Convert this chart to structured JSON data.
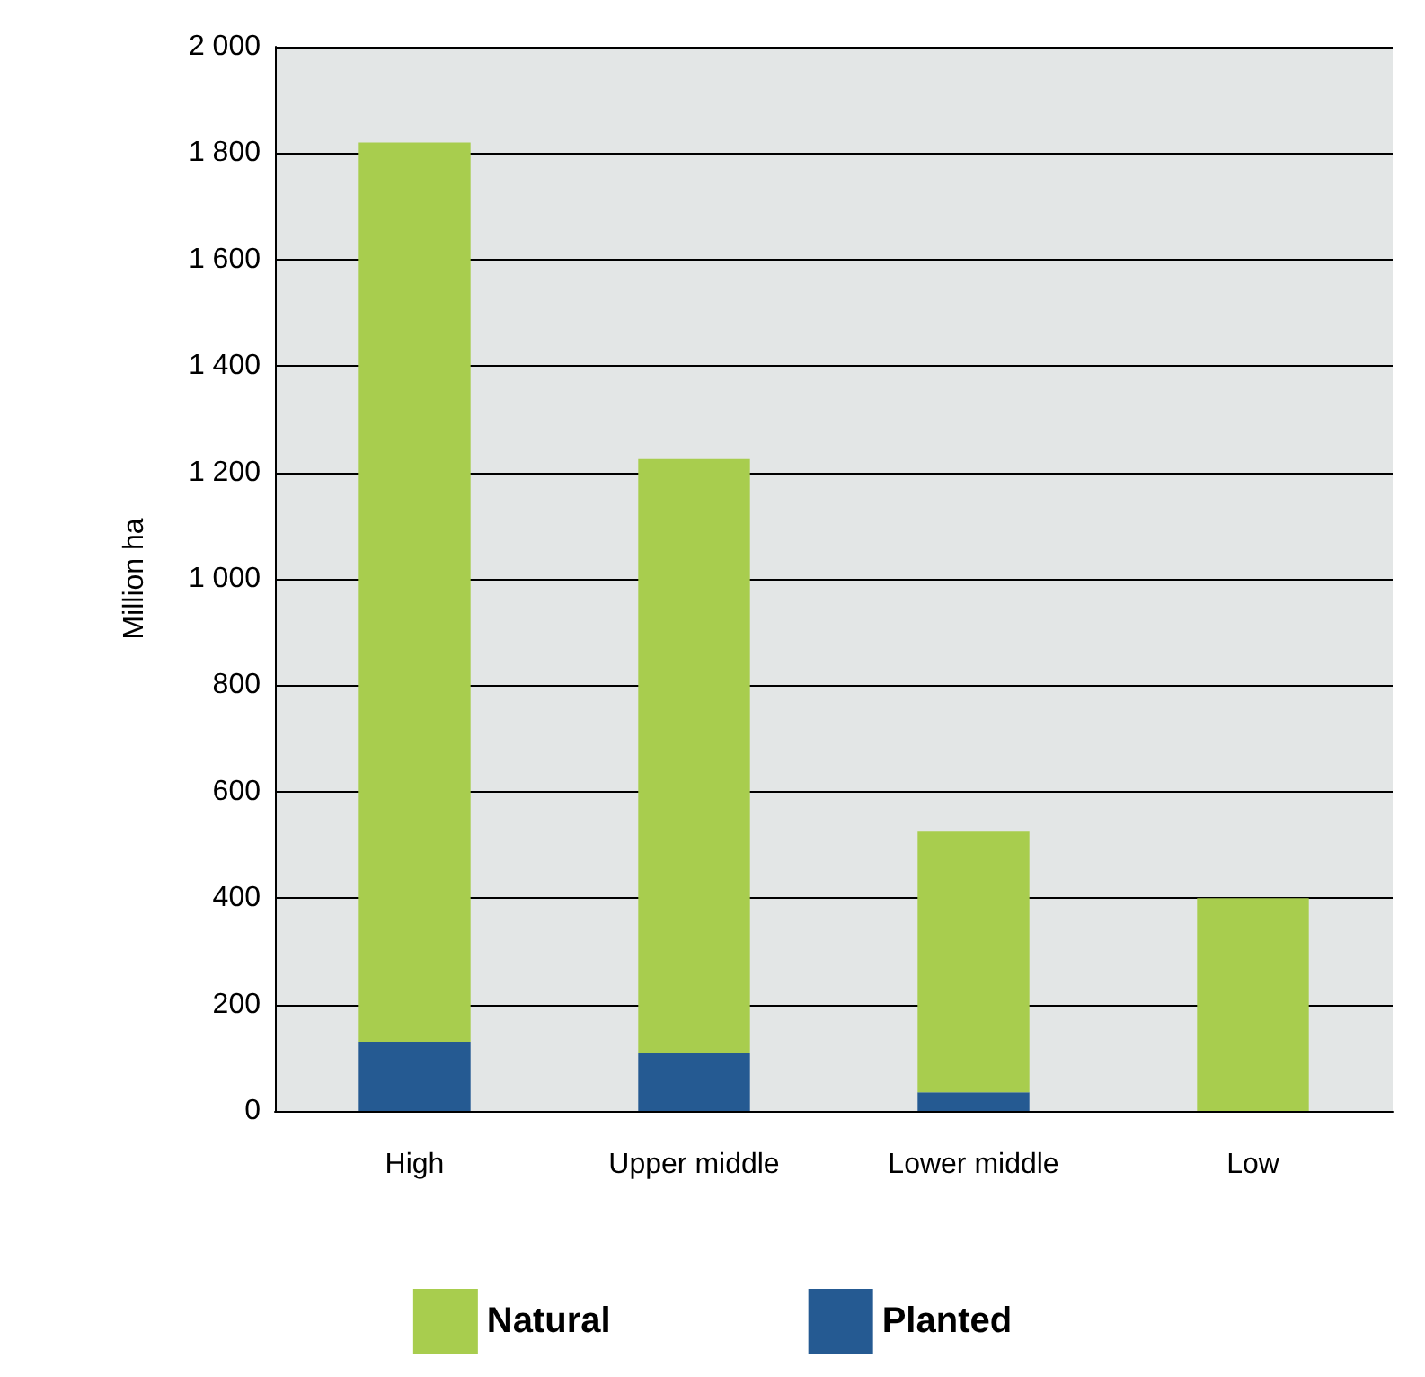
{
  "chart_data": {
    "type": "bar",
    "stacked": true,
    "ylabel": "Million ha",
    "categories": [
      "High",
      "Upper middle",
      "Lower middle",
      "Low"
    ],
    "series": [
      {
        "name": "Planted",
        "color": "#255a92",
        "values": [
          130,
          110,
          35,
          0
        ]
      },
      {
        "name": "Natural",
        "color": "#a8cd4e",
        "values": [
          1690,
          1115,
          490,
          400
        ]
      }
    ],
    "ylim": [
      0,
      2000
    ],
    "yticks": [
      0,
      200,
      400,
      600,
      800,
      {
        "value": 1000,
        "label": "1 000"
      },
      {
        "value": 1200,
        "label": "1 200"
      },
      {
        "value": 1400,
        "label": "1 400"
      },
      {
        "value": 1600,
        "label": "1 600"
      },
      {
        "value": 1800,
        "label": "1 800"
      },
      {
        "value": 2000,
        "label": "2 000"
      }
    ],
    "grid": "y",
    "legend": "bottom"
  }
}
